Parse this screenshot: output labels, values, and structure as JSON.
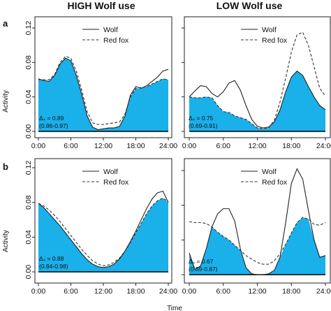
{
  "titles": {
    "left": "HIGH Wolf use",
    "right": "LOW Wolf use"
  },
  "row_labels": {
    "a": "a",
    "b": "b"
  },
  "x_axis_label": "Time",
  "y_axis_label": "Activity",
  "legend": {
    "wolf": "Wolf",
    "fox": "Red fox"
  },
  "colors": {
    "overlap_fill": "#1ab0ea",
    "wolf_line": "#222222",
    "fox_line": "#333333",
    "baseline": "#000000",
    "frame": "#222222"
  },
  "chart_data": [
    {
      "id": "a-high",
      "type": "line",
      "row": "a",
      "column": "HIGH Wolf use",
      "xlim": [
        0,
        24
      ],
      "ylim": [
        0,
        0.12
      ],
      "xticks": [
        "0:00",
        "6:00",
        "12:00",
        "18:00",
        "24:00"
      ],
      "yticks": [
        "0.00",
        "0.04",
        "0.08",
        "0.12"
      ],
      "show_y_ticks": true,
      "annotation": {
        "delta": "Δ₄ = 0.89",
        "ci": "(0.86-0.97)"
      },
      "x": [
        0,
        1,
        2,
        3,
        4,
        5,
        6,
        7,
        8,
        9,
        10,
        11,
        12,
        13,
        14,
        15,
        16,
        17,
        18,
        19,
        20,
        21,
        22,
        23,
        24
      ],
      "series": [
        {
          "name": "Wolf",
          "style": "solid",
          "values": [
            0.061,
            0.059,
            0.058,
            0.065,
            0.078,
            0.085,
            0.082,
            0.065,
            0.043,
            0.018,
            0.005,
            0.002,
            0.003,
            0.004,
            0.004,
            0.006,
            0.018,
            0.042,
            0.052,
            0.05,
            0.053,
            0.058,
            0.063,
            0.07,
            0.072
          ]
        },
        {
          "name": "Red fox",
          "style": "dashed",
          "values": [
            0.06,
            0.06,
            0.06,
            0.066,
            0.08,
            0.087,
            0.085,
            0.07,
            0.048,
            0.023,
            0.01,
            0.008,
            0.008,
            0.009,
            0.01,
            0.011,
            0.02,
            0.04,
            0.05,
            0.051,
            0.052,
            0.055,
            0.058,
            0.061,
            0.06
          ]
        }
      ]
    },
    {
      "id": "a-low",
      "type": "line",
      "row": "a",
      "column": "LOW Wolf use",
      "xlim": [
        0,
        24
      ],
      "ylim": [
        0,
        0.12
      ],
      "xticks": [
        "0:00",
        "6:00",
        "12:00",
        "18:00",
        "24:00"
      ],
      "yticks": [
        "0.00",
        "0.04",
        "0.08",
        "0.12"
      ],
      "show_y_ticks": false,
      "annotation": {
        "delta": "Δ₄ = 0.75",
        "ci": "(0.69-0.91)"
      },
      "x": [
        0,
        1,
        2,
        3,
        4,
        5,
        6,
        7,
        8,
        9,
        10,
        11,
        12,
        13,
        14,
        15,
        16,
        17,
        18,
        19,
        20,
        21,
        22,
        23,
        24
      ],
      "series": [
        {
          "name": "Wolf",
          "style": "solid",
          "values": [
            0.04,
            0.047,
            0.053,
            0.052,
            0.044,
            0.04,
            0.046,
            0.056,
            0.059,
            0.048,
            0.03,
            0.014,
            0.006,
            0.004,
            0.005,
            0.011,
            0.025,
            0.046,
            0.063,
            0.07,
            0.065,
            0.052,
            0.04,
            0.03,
            0.025
          ]
        },
        {
          "name": "Red fox",
          "style": "dashed",
          "values": [
            0.04,
            0.039,
            0.039,
            0.04,
            0.039,
            0.03,
            0.023,
            0.022,
            0.018,
            0.016,
            0.014,
            0.009,
            0.004,
            0.003,
            0.004,
            0.013,
            0.034,
            0.062,
            0.092,
            0.112,
            0.115,
            0.1,
            0.075,
            0.05,
            0.041
          ]
        }
      ]
    },
    {
      "id": "b-high",
      "type": "line",
      "row": "b",
      "column": "HIGH Wolf use",
      "xlim": [
        0,
        24
      ],
      "ylim": [
        0,
        0.12
      ],
      "xticks": [
        "0:00",
        "6:00",
        "12:00",
        "18:00",
        "24:00"
      ],
      "yticks": [
        "0.00",
        "0.04",
        "0.08",
        "0.12"
      ],
      "show_y_ticks": true,
      "annotation": {
        "delta": "Δ₄ = 0.88",
        "ci": "(0.84-0.98)"
      },
      "x": [
        0,
        1,
        2,
        3,
        4,
        5,
        6,
        7,
        8,
        9,
        10,
        11,
        12,
        13,
        14,
        15,
        16,
        17,
        18,
        19,
        20,
        21,
        22,
        23,
        24
      ],
      "series": [
        {
          "name": "Wolf",
          "style": "solid",
          "values": [
            0.079,
            0.074,
            0.067,
            0.06,
            0.053,
            0.045,
            0.037,
            0.029,
            0.021,
            0.014,
            0.009,
            0.006,
            0.005,
            0.006,
            0.009,
            0.015,
            0.024,
            0.035,
            0.047,
            0.06,
            0.073,
            0.084,
            0.091,
            0.093,
            0.08
          ]
        },
        {
          "name": "Red fox",
          "style": "dashed",
          "values": [
            0.079,
            0.076,
            0.071,
            0.065,
            0.058,
            0.05,
            0.042,
            0.034,
            0.026,
            0.019,
            0.013,
            0.009,
            0.007,
            0.008,
            0.011,
            0.016,
            0.024,
            0.034,
            0.045,
            0.056,
            0.067,
            0.076,
            0.082,
            0.085,
            0.081
          ]
        }
      ]
    },
    {
      "id": "b-low",
      "type": "line",
      "row": "b",
      "column": "LOW Wolf use",
      "xlim": [
        0,
        24
      ],
      "ylim": [
        0,
        0.12
      ],
      "xticks": [
        "0:00",
        "6:00",
        "12:00",
        "18:00",
        "24:00"
      ],
      "yticks": [
        "0.00",
        "0.04",
        "0.08",
        "0.12"
      ],
      "show_y_ticks": false,
      "annotation": {
        "delta": "Δ₄ = 0.67",
        "ci": "(0.59-0.87)"
      },
      "x": [
        0,
        1,
        2,
        3,
        4,
        5,
        6,
        7,
        8,
        9,
        10,
        11,
        12,
        13,
        14,
        15,
        16,
        17,
        18,
        19,
        20,
        21,
        22,
        23,
        24
      ],
      "series": [
        {
          "name": "Wolf",
          "style": "solid",
          "values": [
            0.025,
            0.006,
            0.01,
            0.03,
            0.055,
            0.07,
            0.076,
            0.076,
            0.062,
            0.03,
            0.008,
            0.001,
            0.0,
            0.0,
            0.001,
            0.005,
            0.02,
            0.06,
            0.105,
            0.122,
            0.11,
            0.074,
            0.04,
            0.02,
            0.022
          ]
        },
        {
          "name": "Red fox",
          "style": "dashed",
          "values": [
            0.061,
            0.06,
            0.06,
            0.059,
            0.055,
            0.049,
            0.044,
            0.04,
            0.034,
            0.028,
            0.022,
            0.018,
            0.014,
            0.012,
            0.012,
            0.016,
            0.024,
            0.035,
            0.048,
            0.06,
            0.066,
            0.064,
            0.058,
            0.057,
            0.06
          ]
        }
      ]
    }
  ]
}
